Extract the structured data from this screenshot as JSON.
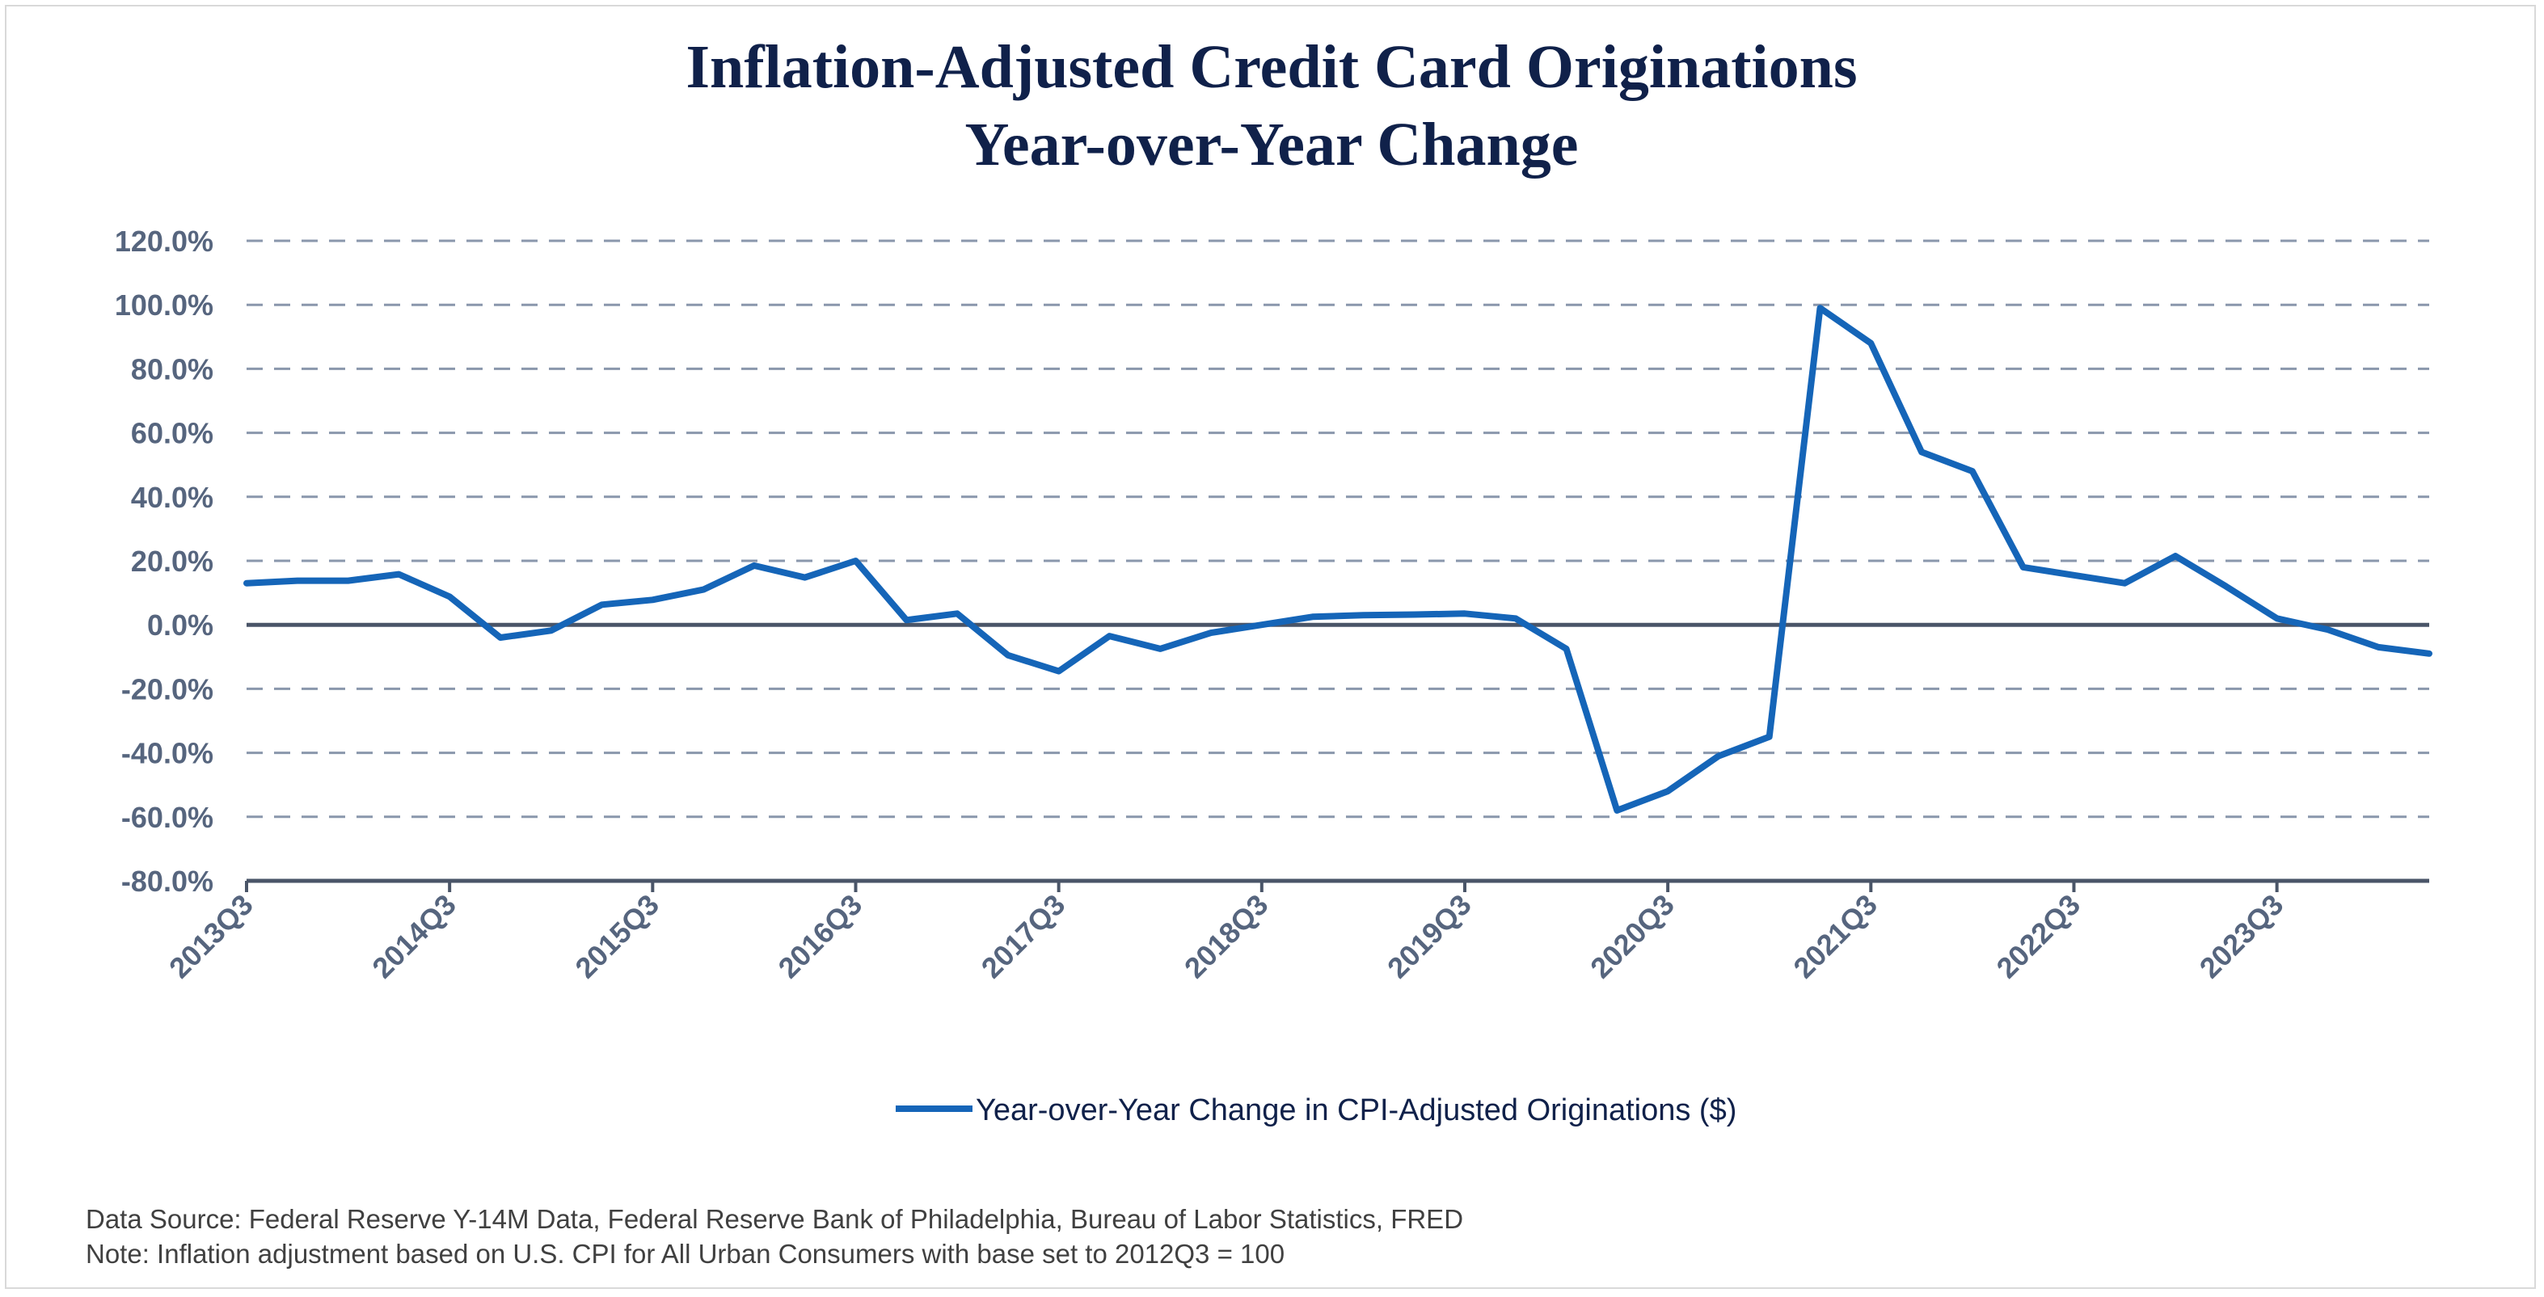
{
  "chart_data": {
    "type": "line",
    "title": [
      "Inflation-Adjusted Credit Card Originations",
      "Year-over-Year Change"
    ],
    "xlabel": "",
    "ylabel": "",
    "ylim": [
      -80,
      120
    ],
    "yticks": [
      120,
      100,
      80,
      60,
      40,
      20,
      0,
      -20,
      -40,
      -60,
      -80
    ],
    "ytick_labels": [
      "120.0%",
      "100.0%",
      "80.0%",
      "60.0%",
      "40.0%",
      "20.0%",
      "0.0%",
      "-20.0%",
      "-40.0%",
      "-60.0%",
      "-80.0%"
    ],
    "x": [
      "2013Q3",
      "2013Q4",
      "2014Q1",
      "2014Q2",
      "2014Q3",
      "2014Q4",
      "2015Q1",
      "2015Q2",
      "2015Q3",
      "2015Q4",
      "2016Q1",
      "2016Q2",
      "2016Q3",
      "2016Q4",
      "2017Q1",
      "2017Q2",
      "2017Q3",
      "2017Q4",
      "2018Q1",
      "2018Q2",
      "2018Q3",
      "2018Q4",
      "2019Q1",
      "2019Q2",
      "2019Q3",
      "2019Q4",
      "2020Q1",
      "2020Q2",
      "2020Q3",
      "2020Q4",
      "2021Q1",
      "2021Q2",
      "2021Q3",
      "2021Q4",
      "2022Q1",
      "2022Q2",
      "2022Q3",
      "2022Q4",
      "2023Q1",
      "2023Q2",
      "2023Q3",
      "2023Q4",
      "2024Q1",
      "2024Q2"
    ],
    "xtick_labels": [
      "2013Q3",
      "2014Q3",
      "2015Q3",
      "2016Q3",
      "2017Q3",
      "2018Q3",
      "2019Q3",
      "2020Q3",
      "2021Q3",
      "2022Q3",
      "2023Q3"
    ],
    "series": [
      {
        "name": "Year-over-Year Change in CPI-Adjusted Originations ($)",
        "color": "#1565b8",
        "values": [
          13.0,
          13.8,
          13.8,
          15.8,
          8.8,
          -4.0,
          -1.8,
          6.3,
          7.8,
          11.0,
          18.5,
          14.8,
          20.0,
          1.5,
          3.5,
          -9.5,
          -14.5,
          -3.5,
          -7.5,
          -2.5,
          0.0,
          2.5,
          3.0,
          3.2,
          3.5,
          2.0,
          -7.5,
          -58.0,
          -52.0,
          -41.0,
          -35.0,
          99.0,
          88.0,
          54.0,
          48.0,
          18.0,
          15.5,
          13.0,
          21.5,
          12.0,
          2.0,
          -1.5,
          -7.0,
          -9.0
        ]
      }
    ],
    "grid": "horizontal-dashed",
    "legend_position": "bottom-center",
    "gridline_color": "#8a97ac",
    "axis_color": "#4a5568"
  },
  "footnotes": {
    "source": "Data Source: Federal Reserve Y-14M Data, Federal Reserve Bank of Philadelphia, Bureau of Labor Statistics, FRED",
    "note": "Note: Inflation adjustment based on U.S. CPI for All Urban Consumers with base set to 2012Q3 = 100"
  }
}
